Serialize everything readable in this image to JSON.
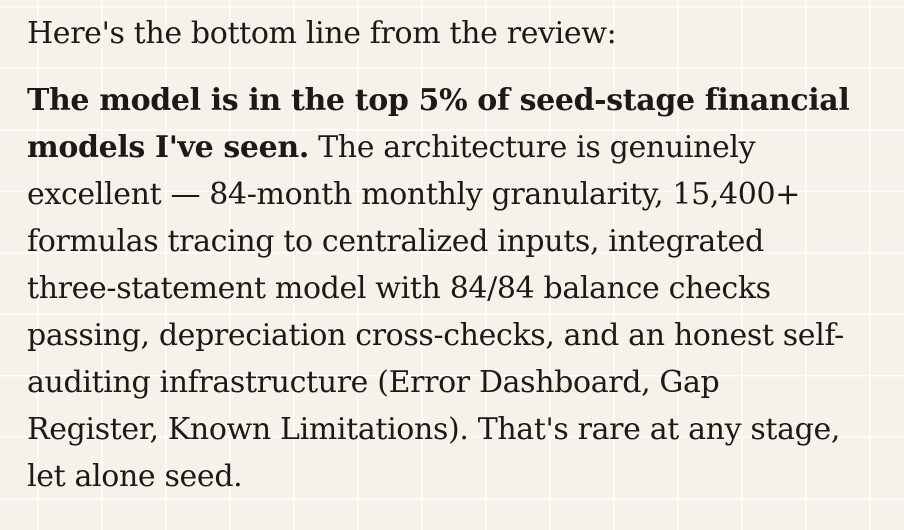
{
  "page": {
    "background_color": "#f5f2ec",
    "grid_line_color": "rgba(255,255,255,0.8)",
    "text_color": "#1b1a17"
  },
  "document": {
    "paragraphs": [
      {
        "lines": [
          [
            {
              "text": "Here's the bottom line from the review:",
              "bold": false
            }
          ]
        ]
      },
      {
        "lines": [
          [
            {
              "text": "The model is in the top 5% of seed-stage financial",
              "bold": true
            }
          ],
          [
            {
              "text": "models I've seen.",
              "bold": true
            },
            {
              "text": " The architecture is genuinely",
              "bold": false
            }
          ],
          [
            {
              "text": "excellent — 84-month monthly granularity, 15,400+",
              "bold": false
            }
          ],
          [
            {
              "text": "formulas tracing to centralized inputs, integrated",
              "bold": false
            }
          ],
          [
            {
              "text": "three-statement model with 84/84 balance checks",
              "bold": false
            }
          ],
          [
            {
              "text": "passing, depreciation cross-checks, and an honest self-",
              "bold": false
            }
          ],
          [
            {
              "text": "auditing infrastructure (Error Dashboard, Gap",
              "bold": false
            }
          ],
          [
            {
              "text": "Register, Known Limitations). That's rare at any stage,",
              "bold": false
            }
          ],
          [
            {
              "text": "let alone seed.",
              "bold": false
            }
          ]
        ]
      }
    ]
  }
}
